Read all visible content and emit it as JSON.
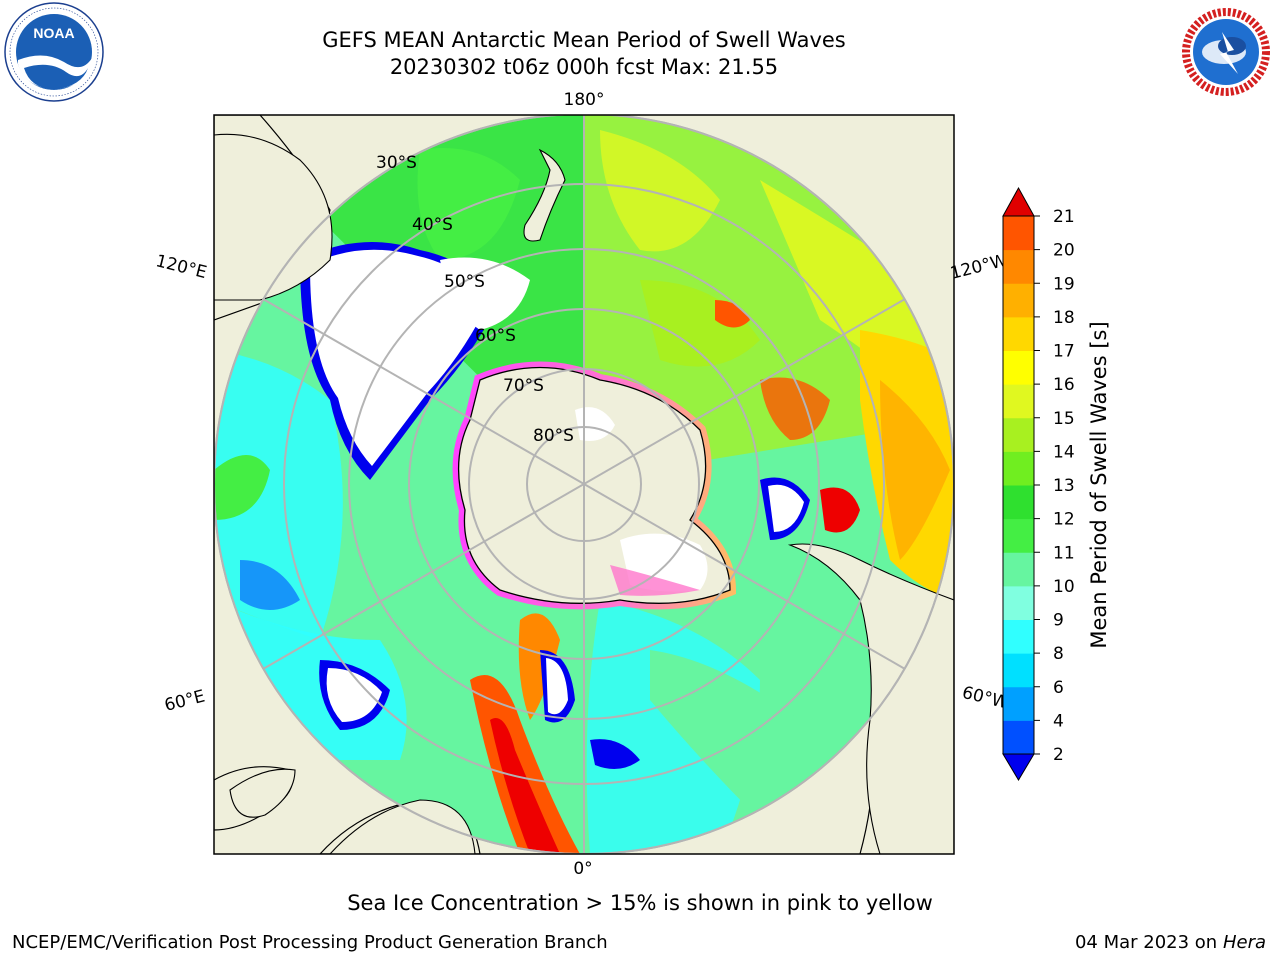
{
  "header": {
    "title_line1": "GEFS MEAN Antarctic Mean Period of Swell Waves",
    "title_line2": "20230302 t06z 000h fcst   Max: 21.55"
  },
  "logos": {
    "left": "noaa-logo",
    "left_text": "NOAA",
    "left_ring_text": "NATIONAL OCEANIC AND ATMOSPHERIC ADMINISTRATION · U.S. DEPARTMENT OF COMMERCE",
    "right": "nws-logo",
    "right_ring_text": "NATIONAL WEATHER SERVICE"
  },
  "map": {
    "projection": "south-polar-stereographic",
    "longitude_labels": {
      "top": "180°",
      "bottom": "0°",
      "upper_left": "120°E",
      "upper_right": "120°W",
      "lower_left": "60°E",
      "lower_right": "60°W"
    },
    "latitude_labels": [
      "30°S",
      "40°S",
      "50°S",
      "60°S",
      "70°S",
      "80°S"
    ]
  },
  "colorbar": {
    "label": "Mean Period of Swell Waves [s]",
    "ticks": [
      "2",
      "4",
      "6",
      "8",
      "9",
      "10",
      "11",
      "12",
      "13",
      "14",
      "15",
      "16",
      "17",
      "18",
      "19",
      "20",
      "21"
    ],
    "colors": [
      "#0050ff",
      "#00a0ff",
      "#00e0ff",
      "#30ffff",
      "#80ffe0",
      "#66f5a0",
      "#44ee44",
      "#2fe02f",
      "#70ee20",
      "#a8f020",
      "#e0f820",
      "#ffff00",
      "#ffd800",
      "#ffb000",
      "#ff8800",
      "#ff5500",
      "#ff2800",
      "#ee0000"
    ],
    "under_color": "#0000ee",
    "over_color": "#e00000"
  },
  "footer": {
    "caption": "Sea Ice Concentration > 15% is shown in pink to yellow",
    "left": "NCEP/EMC/Verification Post Processing Product Generation Branch",
    "right_date": "04 Mar 2023 on",
    "right_host": "Hera"
  }
}
